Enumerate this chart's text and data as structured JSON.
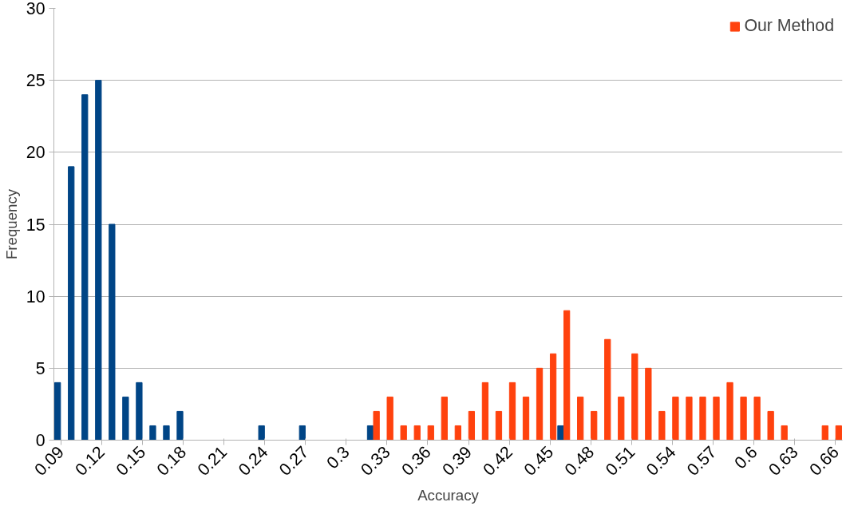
{
  "chart_data": {
    "type": "bar",
    "xlabel": "Accuracy",
    "ylabel": "Frequency",
    "categories": [
      "0.09",
      null,
      null,
      "0.12",
      null,
      null,
      "0.15",
      null,
      null,
      "0.18",
      null,
      null,
      "0.21",
      null,
      null,
      "0.24",
      null,
      null,
      "0.27",
      null,
      null,
      "0.3",
      null,
      null,
      "0.33",
      null,
      null,
      "0.36",
      null,
      null,
      "0.39",
      null,
      null,
      "0.42",
      null,
      null,
      "0.45",
      null,
      null,
      "0.48",
      null,
      null,
      "0.51",
      null,
      null,
      "0.54",
      null,
      null,
      "0.57",
      null,
      null,
      "0.6",
      null,
      null,
      "0.63",
      null,
      null,
      "0.66"
    ],
    "series": [
      {
        "color": "#004586",
        "values": [
          4,
          19,
          24,
          25,
          15,
          3,
          4,
          1,
          1,
          2,
          0,
          0,
          0,
          0,
          0,
          1,
          0,
          0,
          1,
          0,
          0,
          0,
          0,
          1,
          0,
          0,
          0,
          0,
          0,
          0,
          0,
          0,
          0,
          0,
          0,
          0,
          0,
          1,
          0,
          0,
          0,
          0,
          0,
          0,
          0,
          0,
          0,
          0,
          0,
          0,
          0,
          0,
          0,
          0,
          0,
          0,
          0,
          0
        ]
      },
      {
        "name": "Our Method",
        "color": "#ff420e",
        "values": [
          0,
          0,
          0,
          0,
          0,
          0,
          0,
          0,
          0,
          0,
          0,
          0,
          0,
          0,
          0,
          0,
          0,
          0,
          0,
          0,
          0,
          0,
          0,
          2,
          3,
          1,
          1,
          1,
          3,
          1,
          2,
          4,
          2,
          4,
          3,
          5,
          6,
          9,
          3,
          2,
          7,
          3,
          6,
          5,
          2,
          3,
          3,
          3,
          3,
          4,
          3,
          3,
          2,
          1,
          0,
          0,
          1,
          1
        ]
      }
    ],
    "ylim": [
      0,
      30
    ],
    "yticks": [
      0,
      5,
      10,
      15,
      20,
      25,
      30
    ],
    "grid": "y",
    "legend": "top right"
  }
}
